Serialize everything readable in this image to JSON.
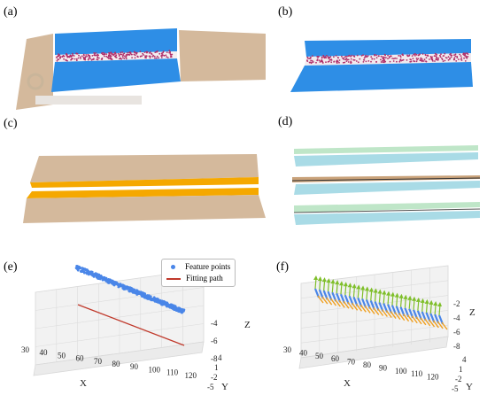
{
  "panels": {
    "a": {
      "label": "(a)"
    },
    "b": {
      "label": "(b)"
    },
    "c": {
      "label": "(c)"
    },
    "d": {
      "label": "(d)"
    },
    "e": {
      "label": "(e)"
    },
    "f": {
      "label": "(f)"
    }
  },
  "colors": {
    "blue_plate": "#2e8ee6",
    "tan_plate": "#d4b99c",
    "orange_band": "#f5a800",
    "seam_points": "#b0306a",
    "teal_plate": "#a9dbe6",
    "green_plate": "#bfe6c8",
    "feature_points": "#4a86e8",
    "fitting_path": "#c0392b",
    "vector_arrows": "#7fbf2a"
  },
  "chart_data": [
    {
      "panel": "e",
      "type": "scatter",
      "legend": [
        "Feature points",
        "Fitting path"
      ],
      "legend_placement": "top-right",
      "xlabel": "X",
      "ylabel": "Y",
      "zlabel": "Z",
      "xticks": [
        "30",
        "40",
        "50",
        "60",
        "70",
        "80",
        "90",
        "100",
        "110",
        "120"
      ],
      "yticks": [
        "-5",
        "-2",
        "1",
        "4"
      ],
      "zticks": [
        "-8",
        "-6",
        "-4"
      ],
      "grid": true
    },
    {
      "panel": "f",
      "type": "scatter",
      "xlabel": "X",
      "ylabel": "Y",
      "zlabel": "Z",
      "xticks": [
        "30",
        "40",
        "50",
        "60",
        "70",
        "80",
        "90",
        "100",
        "110",
        "120"
      ],
      "yticks": [
        "-5",
        "-2",
        "1",
        "4"
      ],
      "zticks": [
        "-8",
        "-6",
        "-4",
        "-2"
      ],
      "grid": true
    }
  ]
}
